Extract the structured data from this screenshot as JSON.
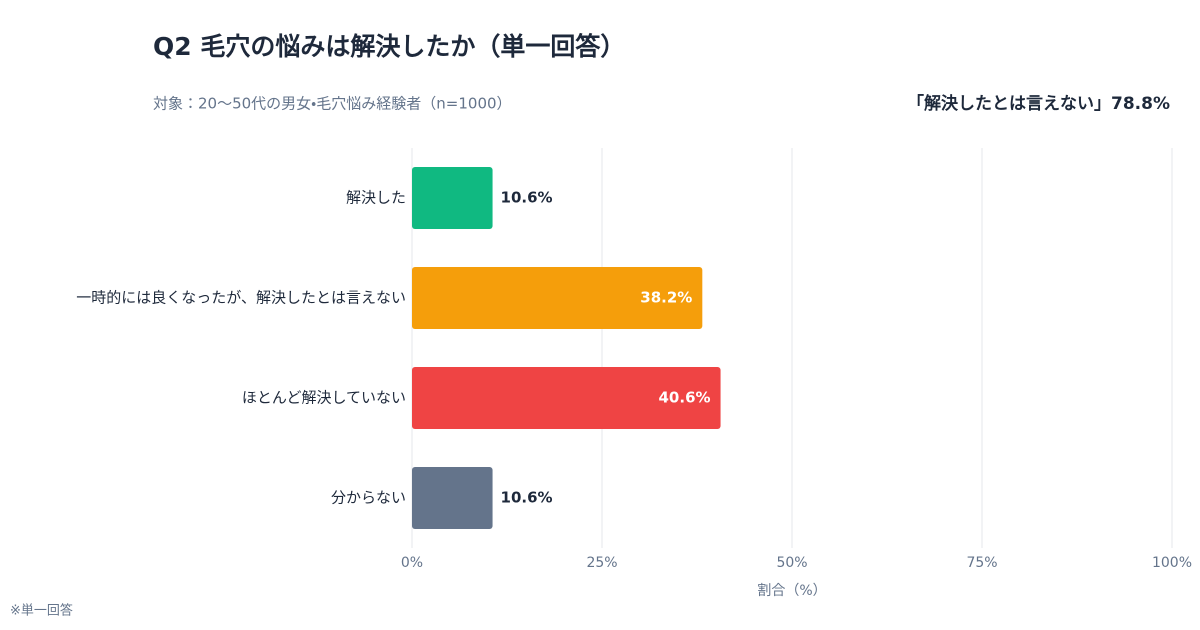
{
  "chart_data": {
    "type": "barh",
    "title": "Q2 毛穴の悩みは解決したか（単一回答）",
    "subtitle": "対象：20〜50代の男女・毛穴悩み経験者（n=1000）",
    "annotation": "「解決したとは言えない」78.8%",
    "footnote": "※単一回答",
    "x_label": "割合（%）",
    "categories": [
      "解決した",
      "一時的には良くなったが、解決したとは言えない",
      "ほとんど解決していない",
      "分からない"
    ],
    "values": [
      10.6,
      38.2,
      40.6,
      10.6
    ],
    "value_labels": [
      "10.6%",
      "38.2%",
      "40.6%",
      "10.6%"
    ],
    "colors": [
      "#10b981",
      "#f59e0b",
      "#ef4444",
      "#64748b"
    ],
    "xlim": [
      0,
      100
    ],
    "xticks": [
      {
        "value": 0,
        "label": "0%"
      },
      {
        "value": 25,
        "label": "25%"
      },
      {
        "value": 50,
        "label": "50%"
      },
      {
        "value": 75,
        "label": "75%"
      },
      {
        "value": 100,
        "label": "100%"
      }
    ],
    "grid": true
  }
}
